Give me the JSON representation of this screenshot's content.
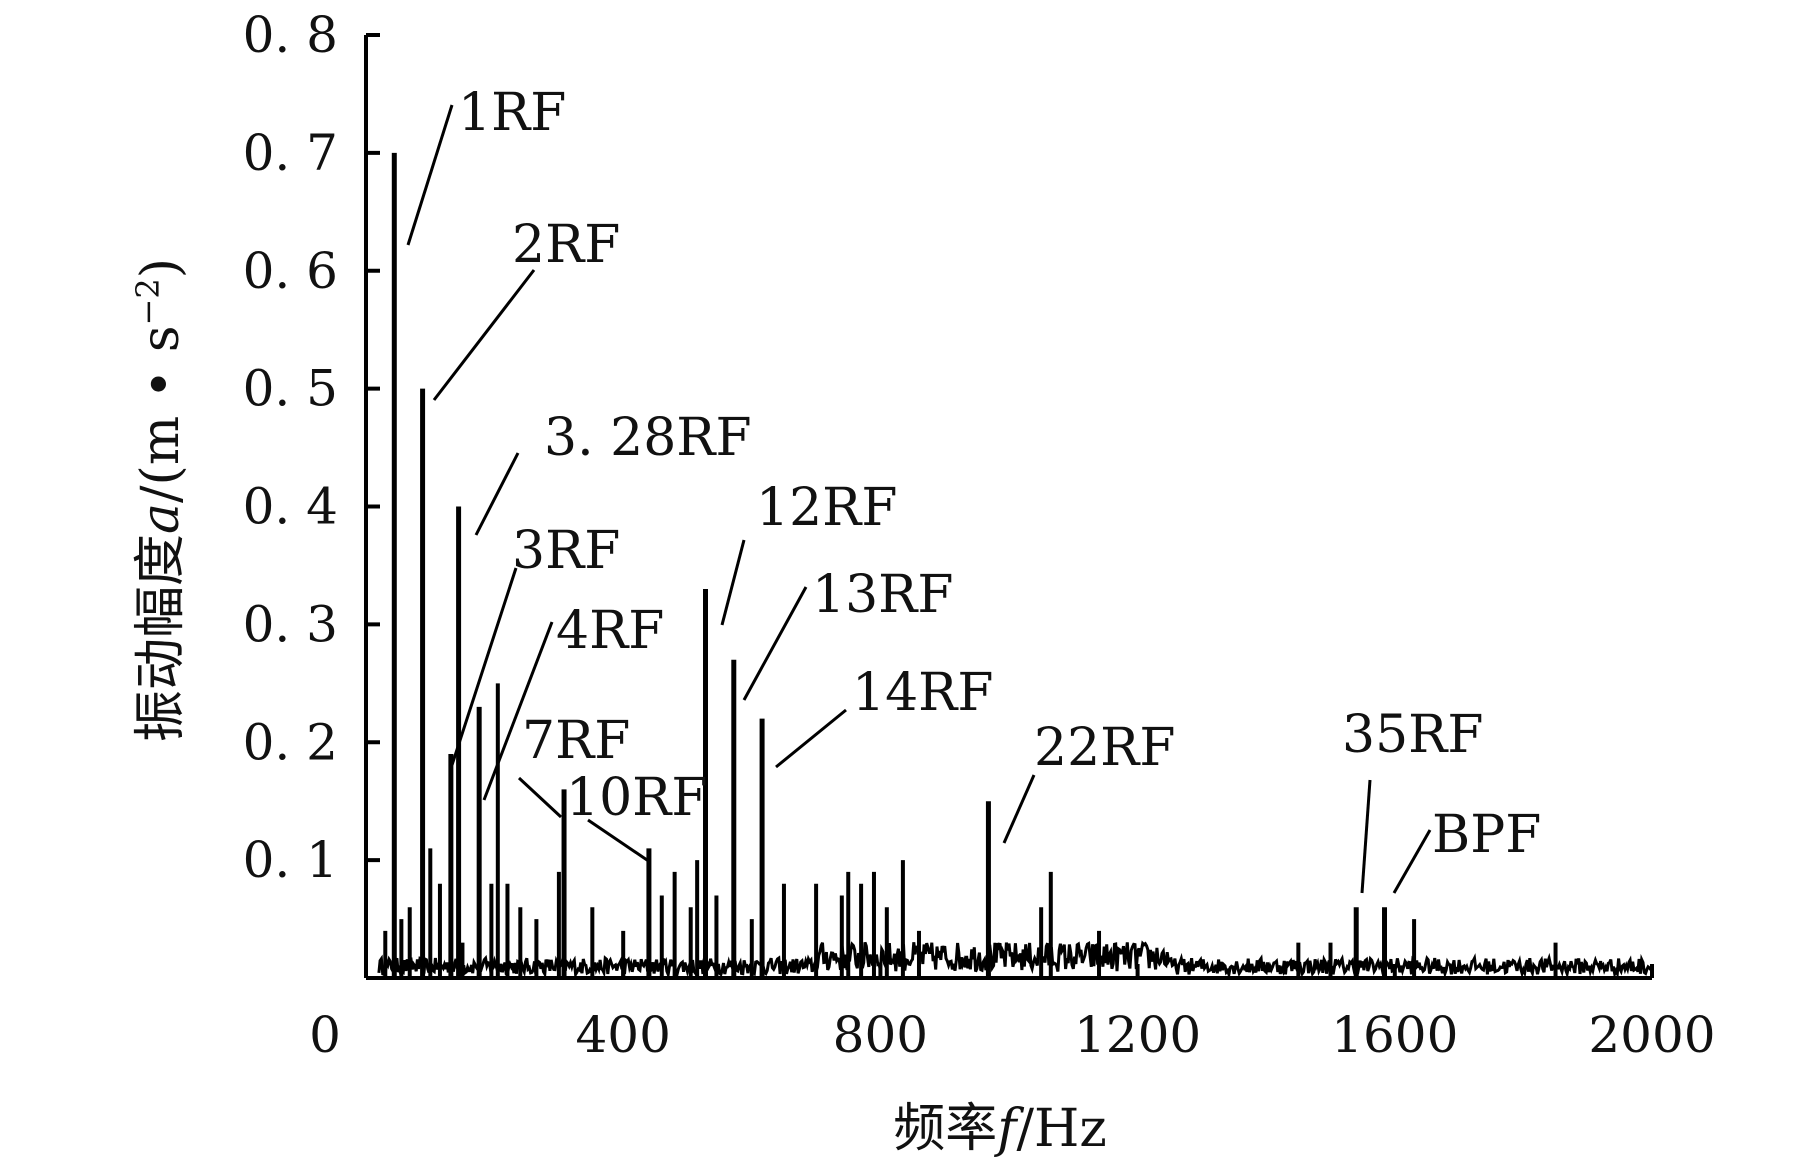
{
  "chart_data": {
    "type": "line",
    "title": "",
    "xlabel_prefix": "频率",
    "xlabel_var": "f",
    "xlabel_unit": "/Hz",
    "ylabel_prefix": "振动幅度",
    "ylabel_var": "a",
    "ylabel_unit_open": "/(m • s",
    "ylabel_unit_sup": "−2",
    "ylabel_unit_close": ")",
    "xlim": [
      0,
      2000
    ],
    "ylim": [
      0,
      0.8
    ],
    "xticks": [
      0,
      400,
      800,
      1200,
      1600,
      2000
    ],
    "xtick_labels": [
      "0",
      "400",
      "800",
      "1200",
      "1600",
      "2000"
    ],
    "yticks": [
      0.1,
      0.2,
      0.3,
      0.4,
      0.5,
      0.6,
      0.7,
      0.8
    ],
    "ytick_labels": [
      "0. 1",
      "0. 2",
      "0. 3",
      "0. 4",
      "0. 5",
      "0. 6",
      "0. 7",
      "0. 8"
    ],
    "grid": false,
    "line_color": "#000000",
    "noise_floor": 0.01,
    "peaks": [
      {
        "x": 44,
        "y": 0.7,
        "label": "1RF"
      },
      {
        "x": 88,
        "y": 0.5,
        "label": "2RF"
      },
      {
        "x": 144,
        "y": 0.4,
        "label": "3. 28RF"
      },
      {
        "x": 132,
        "y": 0.19,
        "label": "3RF"
      },
      {
        "x": 176,
        "y": 0.23,
        "label": "4RF"
      },
      {
        "x": 308,
        "y": 0.16,
        "label": "7RF"
      },
      {
        "x": 440,
        "y": 0.11,
        "label": "10RF"
      },
      {
        "x": 528,
        "y": 0.33,
        "label": "12RF"
      },
      {
        "x": 572,
        "y": 0.27,
        "label": "13RF"
      },
      {
        "x": 616,
        "y": 0.22,
        "label": "14RF"
      },
      {
        "x": 968,
        "y": 0.15,
        "label": "22RF"
      },
      {
        "x": 1540,
        "y": 0.06,
        "label": "35RF"
      },
      {
        "x": 1584,
        "y": 0.06,
        "label": "BPF"
      }
    ],
    "minor_peaks": [
      {
        "x": 30,
        "y": 0.04
      },
      {
        "x": 55,
        "y": 0.05
      },
      {
        "x": 68,
        "y": 0.06
      },
      {
        "x": 100,
        "y": 0.11
      },
      {
        "x": 115,
        "y": 0.08
      },
      {
        "x": 150,
        "y": 0.03
      },
      {
        "x": 195,
        "y": 0.08
      },
      {
        "x": 205,
        "y": 0.25
      },
      {
        "x": 220,
        "y": 0.08
      },
      {
        "x": 240,
        "y": 0.06
      },
      {
        "x": 265,
        "y": 0.05
      },
      {
        "x": 300,
        "y": 0.09
      },
      {
        "x": 352,
        "y": 0.06
      },
      {
        "x": 400,
        "y": 0.04
      },
      {
        "x": 460,
        "y": 0.07
      },
      {
        "x": 480,
        "y": 0.09
      },
      {
        "x": 505,
        "y": 0.06
      },
      {
        "x": 515,
        "y": 0.1
      },
      {
        "x": 545,
        "y": 0.07
      },
      {
        "x": 600,
        "y": 0.05
      },
      {
        "x": 650,
        "y": 0.08
      },
      {
        "x": 700,
        "y": 0.08
      },
      {
        "x": 740,
        "y": 0.07
      },
      {
        "x": 750,
        "y": 0.09
      },
      {
        "x": 770,
        "y": 0.08
      },
      {
        "x": 790,
        "y": 0.09
      },
      {
        "x": 810,
        "y": 0.06
      },
      {
        "x": 835,
        "y": 0.1
      },
      {
        "x": 860,
        "y": 0.04
      },
      {
        "x": 1050,
        "y": 0.06
      },
      {
        "x": 1065,
        "y": 0.09
      },
      {
        "x": 1140,
        "y": 0.04
      },
      {
        "x": 1450,
        "y": 0.03
      },
      {
        "x": 1500,
        "y": 0.03
      },
      {
        "x": 1630,
        "y": 0.05
      },
      {
        "x": 1850,
        "y": 0.03
      }
    ]
  }
}
